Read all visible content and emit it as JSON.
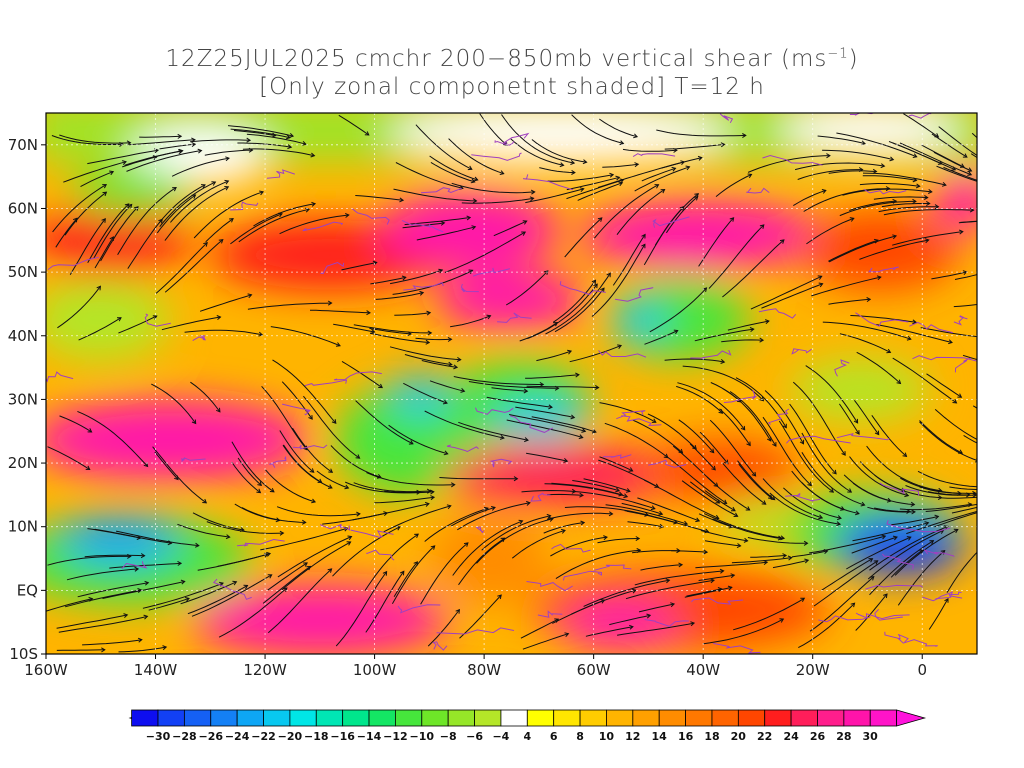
{
  "title": {
    "line1_prefix": "12Z25JUL2025 cmchr 200−850mb vertical shear (ms",
    "line1_sup": "−1",
    "line1_suffix": ")",
    "line2": "[Only zonal componetnt shaded] T=12 h"
  },
  "map": {
    "lon_range": [
      -160,
      10
    ],
    "lat_range": [
      -10,
      75
    ],
    "lat_labels": [
      "70N",
      "60N",
      "50N",
      "40N",
      "30N",
      "20N",
      "10N",
      "EQ",
      "10S"
    ],
    "lat_values": [
      70,
      60,
      50,
      40,
      30,
      20,
      10,
      0,
      -10
    ],
    "lon_labels": [
      "160W",
      "140W",
      "120W",
      "100W",
      "80W",
      "60W",
      "40W",
      "20W",
      "0"
    ],
    "lon_values": [
      -160,
      -140,
      -120,
      -100,
      -80,
      -60,
      -40,
      -20,
      0
    ]
  },
  "colorbar": {
    "labels": [
      "−30",
      "−28",
      "−26",
      "−24",
      "−22",
      "−20",
      "−18",
      "−16",
      "−14",
      "−12",
      "−10",
      "−8",
      "−6",
      "−4",
      "4",
      "6",
      "8",
      "10",
      "12",
      "14",
      "16",
      "18",
      "20",
      "22",
      "24",
      "26",
      "28",
      "30"
    ],
    "colors": [
      "#0e0ef0",
      "#1240f5",
      "#1560f5",
      "#1480f5",
      "#0ea6f5",
      "#08c8f0",
      "#00e6e6",
      "#00e6b4",
      "#00e68c",
      "#14e664",
      "#46e63c",
      "#6ee628",
      "#96e628",
      "#b4e628",
      "#ffffff",
      "#ffff00",
      "#ffe600",
      "#ffcc00",
      "#ffb400",
      "#ffa000",
      "#ff8c00",
      "#ff7800",
      "#ff6400",
      "#ff4600",
      "#ff1e1e",
      "#ff1e5a",
      "#ff1e8c",
      "#ff14aa",
      "#ff14c8"
    ],
    "low_arrow_color": "#0a0aeb",
    "high_arrow_color": "#ff14dc"
  }
}
